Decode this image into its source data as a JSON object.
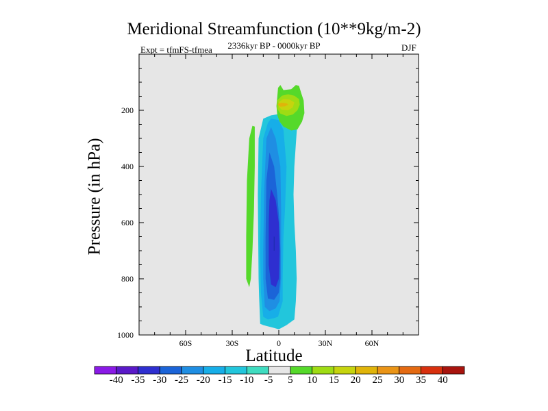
{
  "chart_data": {
    "type": "contour",
    "title": "Meridional Streamfunction (10**9kg/m-2)",
    "subtitle_left": "Expt = tfmFS-tfmea",
    "subtitle_center": "2336kyr BP - 0000kyr BP",
    "subtitle_right": "DJF",
    "xlabel": "Latitude",
    "ylabel": "Pressure (in hPa)",
    "xlim": [
      -90,
      90
    ],
    "ylim": [
      1000,
      0
    ],
    "x_ticks": [
      {
        "value": -60,
        "label": "60S"
      },
      {
        "value": -30,
        "label": "30S"
      },
      {
        "value": 0,
        "label": "0"
      },
      {
        "value": 30,
        "label": "30N"
      },
      {
        "value": 60,
        "label": "60N"
      }
    ],
    "y_ticks": [
      {
        "value": 200,
        "label": "200"
      },
      {
        "value": 400,
        "label": "400"
      },
      {
        "value": 600,
        "label": "600"
      },
      {
        "value": 800,
        "label": "800"
      },
      {
        "value": 1000,
        "label": "1000"
      }
    ],
    "contour_levels": [
      "-40",
      "-35",
      "-30",
      "-25",
      "-20",
      "-15",
      "-10",
      "-5",
      "5",
      "10",
      "15",
      "20",
      "25",
      "30",
      "35",
      "40"
    ],
    "colors": [
      "#8a1ae6",
      "#5a19c8",
      "#2e2fd0",
      "#1b64d8",
      "#1f8ee3",
      "#17aee8",
      "#22c6dc",
      "#3fdcc0",
      "#e6e6e6",
      "#55d92a",
      "#9fdc14",
      "#c6d40e",
      "#e0b40a",
      "#ea9416",
      "#e46a12",
      "#d8300e",
      "#a8140e"
    ],
    "features": [
      {
        "name": "negative-cell-tropics",
        "lat_range": [
          -15,
          12
        ],
        "p_range": [
          210,
          980
        ],
        "min_value": -30
      },
      {
        "name": "positive-cell-upper",
        "lat_range": [
          -3,
          17
        ],
        "p_range": [
          110,
          270
        ],
        "max_value": 20
      },
      {
        "name": "positive-band-south",
        "lat_range": [
          -21,
          -15
        ],
        "p_range": [
          255,
          830
        ],
        "max_value": 10
      }
    ]
  }
}
